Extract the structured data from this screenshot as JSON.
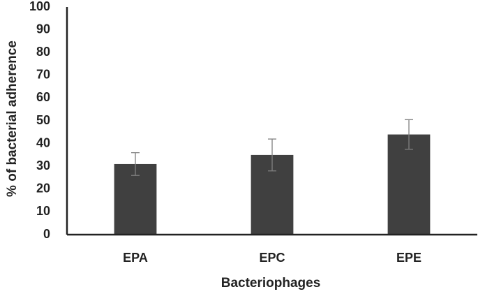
{
  "chart_data": {
    "type": "bar",
    "x_label": "Bacteriophages",
    "y_label": "% of bacterial adherence",
    "categories": [
      "EPA",
      "EPC",
      "EPE"
    ],
    "values": [
      31,
      35,
      44
    ],
    "errors": [
      5,
      7,
      6.5
    ],
    "color": "#404040",
    "error_color": "#808080",
    "ylim": [
      0,
      100
    ],
    "yticks": [
      0,
      10,
      20,
      30,
      40,
      50,
      60,
      70,
      80,
      90,
      100
    ],
    "grid": false
  }
}
